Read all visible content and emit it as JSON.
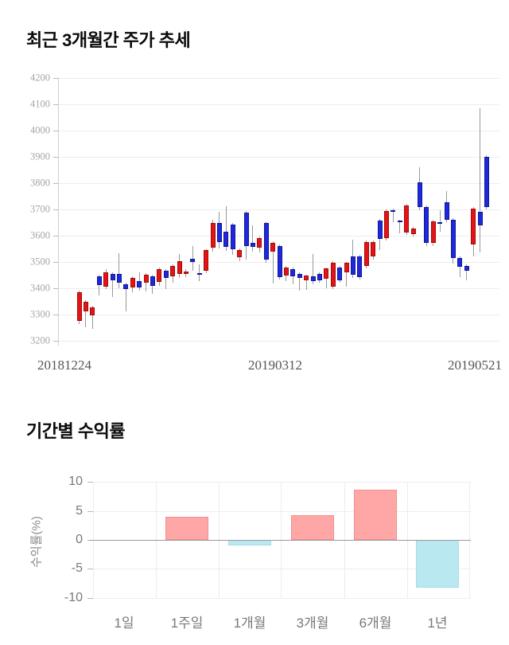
{
  "chart_data": [
    {
      "type": "candlestick",
      "title": "최근 3개월간 주가 추세",
      "x_tick_labels": [
        "20181224",
        "20190312",
        "20190521"
      ],
      "y_ticks": [
        4200,
        4100,
        4000,
        3900,
        3800,
        3700,
        3600,
        3500,
        3400,
        3300,
        3200
      ],
      "ylim": [
        3200,
        4200
      ],
      "grid": true,
      "up_color": "#e41414",
      "up_border": "#a30b0b",
      "down_color": "#2028dc",
      "down_border": "#101899",
      "wick_color": "#999999",
      "candle_format": [
        "direction(u=up/red,d=down/blue)",
        "body_low",
        "body_high",
        "low",
        "high"
      ],
      "candles": [
        [
          "u",
          3275,
          3385,
          3265,
          3390
        ],
        [
          "u",
          3312,
          3350,
          3250,
          3355
        ],
        [
          "u",
          3298,
          3326,
          3246,
          3332
        ],
        [
          "d",
          3412,
          3446,
          3372,
          3452
        ],
        [
          "u",
          3406,
          3462,
          3396,
          3472
        ],
        [
          "d",
          3430,
          3456,
          3368,
          3462
        ],
        [
          "d",
          3420,
          3455,
          3400,
          3532
        ],
        [
          "d",
          3396,
          3416,
          3312,
          3422
        ],
        [
          "u",
          3402,
          3440,
          3386,
          3446
        ],
        [
          "d",
          3404,
          3428,
          3392,
          3462
        ],
        [
          "u",
          3420,
          3452,
          3388,
          3458
        ],
        [
          "d",
          3408,
          3446,
          3378,
          3452
        ],
        [
          "u",
          3424,
          3472,
          3410,
          3478
        ],
        [
          "d",
          3438,
          3468,
          3398,
          3474
        ],
        [
          "u",
          3446,
          3486,
          3420,
          3492
        ],
        [
          "u",
          3455,
          3502,
          3440,
          3530
        ],
        [
          "u",
          3456,
          3465,
          3442,
          3472
        ],
        [
          "d",
          3500,
          3512,
          3468,
          3560
        ],
        [
          "d",
          3450,
          3458,
          3428,
          3490
        ],
        [
          "u",
          3468,
          3545,
          3458,
          3550
        ],
        [
          "u",
          3555,
          3648,
          3540,
          3660
        ],
        [
          "d",
          3575,
          3650,
          3552,
          3690
        ],
        [
          "d",
          3558,
          3615,
          3542,
          3712
        ],
        [
          "d",
          3548,
          3642,
          3528,
          3650
        ],
        [
          "u",
          3518,
          3545,
          3502,
          3552
        ],
        [
          "d",
          3562,
          3688,
          3508,
          3695
        ],
        [
          "d",
          3558,
          3572,
          3538,
          3640
        ],
        [
          "u",
          3555,
          3592,
          3535,
          3598
        ],
        [
          "d",
          3508,
          3648,
          3498,
          3652
        ],
        [
          "u",
          3540,
          3572,
          3418,
          3578
        ],
        [
          "d",
          3442,
          3562,
          3432,
          3568
        ],
        [
          "u",
          3448,
          3478,
          3428,
          3484
        ],
        [
          "d",
          3445,
          3472,
          3415,
          3478
        ],
        [
          "d",
          3438,
          3455,
          3390,
          3460
        ],
        [
          "u",
          3430,
          3448,
          3394,
          3452
        ],
        [
          "d",
          3428,
          3445,
          3416,
          3530
        ],
        [
          "d",
          3430,
          3456,
          3420,
          3462
        ],
        [
          "u",
          3436,
          3476,
          3400,
          3480
        ],
        [
          "u",
          3405,
          3496,
          3398,
          3502
        ],
        [
          "d",
          3430,
          3480,
          3422,
          3486
        ],
        [
          "u",
          3462,
          3496,
          3405,
          3500
        ],
        [
          "d",
          3452,
          3520,
          3438,
          3585
        ],
        [
          "d",
          3442,
          3520,
          3432,
          3526
        ],
        [
          "u",
          3486,
          3576,
          3476,
          3582
        ],
        [
          "u",
          3520,
          3576,
          3510,
          3582
        ],
        [
          "d",
          3588,
          3658,
          3546,
          3664
        ],
        [
          "u",
          3590,
          3694,
          3582,
          3700
        ],
        [
          "d",
          3690,
          3696,
          3650,
          3702
        ],
        [
          "d",
          3650,
          3657,
          3610,
          3662
        ],
        [
          "u",
          3612,
          3716,
          3602,
          3722
        ],
        [
          "u",
          3606,
          3626,
          3596,
          3632
        ],
        [
          "d",
          3708,
          3804,
          3698,
          3862
        ],
        [
          "d",
          3572,
          3708,
          3562,
          3714
        ],
        [
          "u",
          3572,
          3654,
          3562,
          3660
        ],
        [
          "d",
          3644,
          3652,
          3616,
          3696
        ],
        [
          "d",
          3660,
          3726,
          3650,
          3770
        ],
        [
          "d",
          3515,
          3660,
          3495,
          3666
        ],
        [
          "d",
          3482,
          3515,
          3442,
          3520
        ],
        [
          "d",
          3468,
          3484,
          3430,
          3490
        ],
        [
          "u",
          3566,
          3704,
          3520,
          3710
        ],
        [
          "d",
          3640,
          3690,
          3535,
          4085
        ],
        [
          "d",
          3710,
          3900,
          3700,
          3905
        ]
      ]
    },
    {
      "type": "bar",
      "title": "기간별 수익률",
      "ylabel": "수익률(%)",
      "categories": [
        "1일",
        "1주일",
        "1개월",
        "3개월",
        "6개월",
        "1년"
      ],
      "values": [
        0,
        4.0,
        -0.9,
        4.3,
        8.7,
        -8.3
      ],
      "y_ticks": [
        10,
        5,
        0,
        -5,
        -10
      ],
      "ylim": [
        -10,
        10
      ],
      "grid": true,
      "positive_color": "#ffa7a7",
      "positive_border": "#f08f8f",
      "negative_color": "#b9e8f1",
      "negative_border": "#a3dbe8"
    }
  ]
}
